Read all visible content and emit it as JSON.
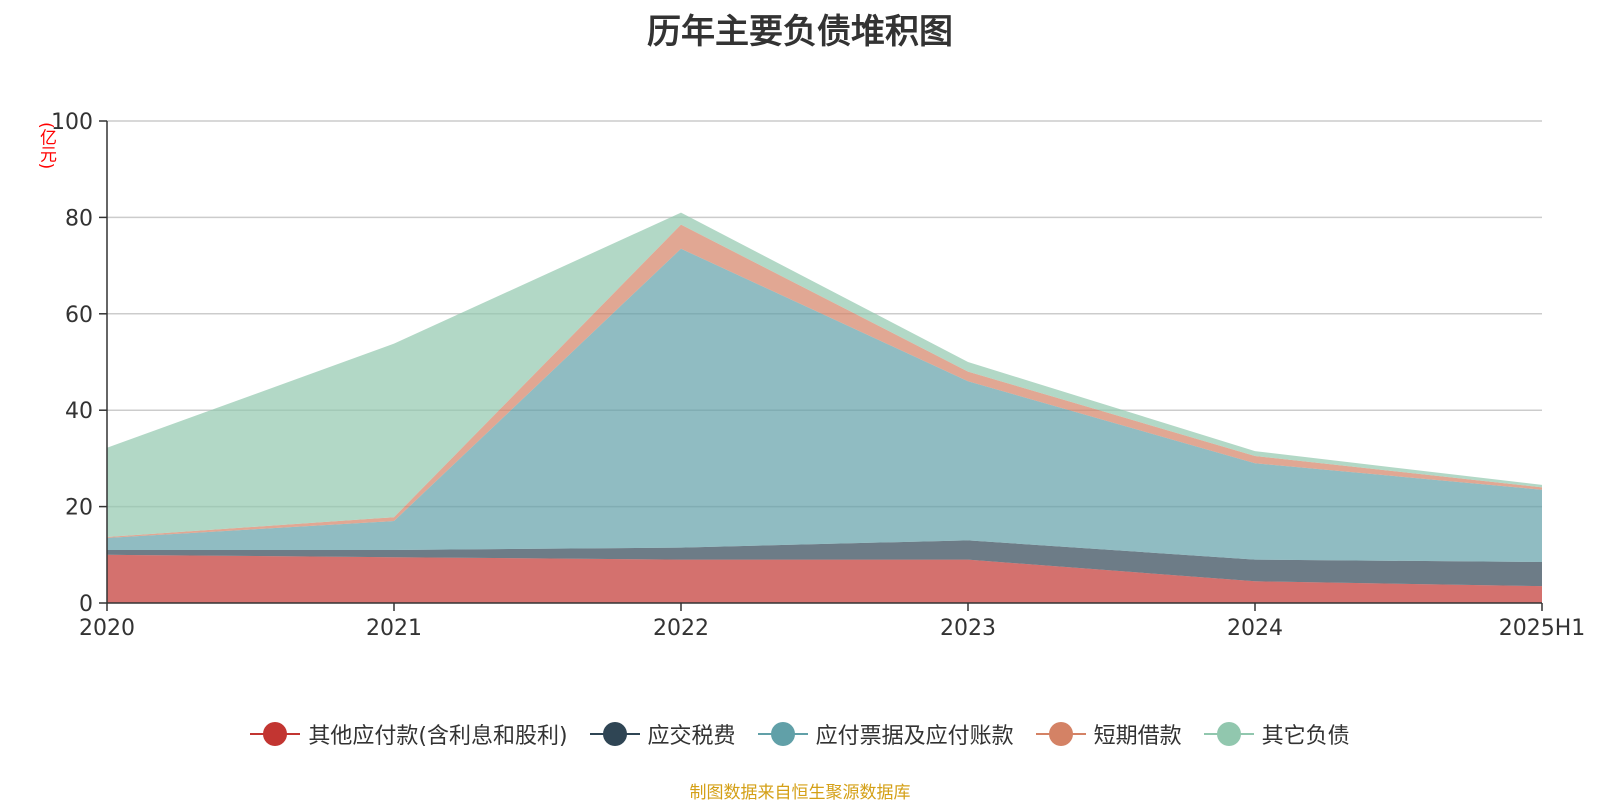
{
  "chart_data": {
    "type": "area",
    "stacked": true,
    "title": "历年主要负债堆积图",
    "ylabel": "(亿元)",
    "xlabel": "",
    "categories": [
      "2020",
      "2021",
      "2022",
      "2023",
      "2024",
      "2025H1"
    ],
    "ylim": [
      0,
      100
    ],
    "yticks": [
      0,
      20,
      40,
      60,
      80,
      100
    ],
    "grid": true,
    "legend_position": "bottom",
    "series": [
      {
        "name": "其他应付款(含利息和股利)",
        "color": "#c23531",
        "values": [
          10.0,
          9.5,
          9.0,
          9.0,
          4.5,
          3.5
        ]
      },
      {
        "name": "应交税费",
        "color": "#2f4554",
        "values": [
          1.0,
          1.5,
          2.5,
          4.0,
          4.5,
          5.0
        ]
      },
      {
        "name": "应付票据及应付账款",
        "color": "#61a0a8",
        "values": [
          2.5,
          6.0,
          62.0,
          33.0,
          20.0,
          15.0
        ]
      },
      {
        "name": "短期借款",
        "color": "#d48265",
        "values": [
          0.2,
          0.8,
          5.0,
          2.0,
          1.5,
          0.5
        ]
      },
      {
        "name": "其它负债",
        "color": "#91c7ae",
        "values": [
          18.5,
          36.0,
          2.5,
          2.0,
          1.0,
          0.5
        ]
      }
    ]
  },
  "source_note": "制图数据来自恒生聚源数据库"
}
